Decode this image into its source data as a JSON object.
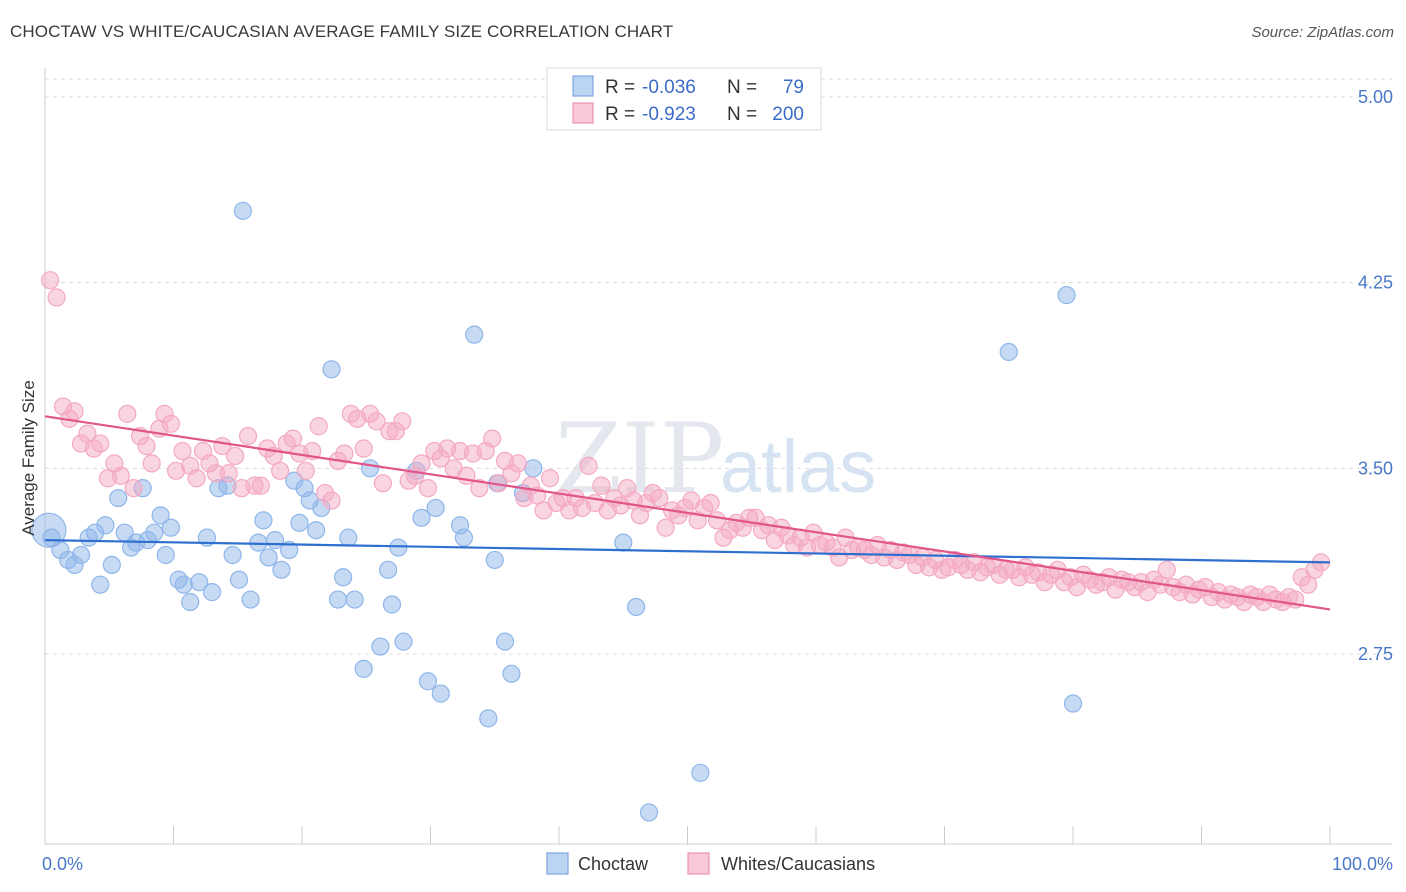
{
  "header": {
    "title": "CHOCTAW VS WHITE/CAUCASIAN AVERAGE FAMILY SIZE CORRELATION CHART",
    "source": "Source: ZipAtlas.com"
  },
  "watermark": {
    "zip": "ZIP",
    "atlas": "atlas"
  },
  "chart_data": {
    "type": "scatter",
    "ylabel": "Average Family Size",
    "xlabel": "",
    "xlim": [
      0,
      100
    ],
    "ylim": [
      2.05,
      5.1
    ],
    "x_tick_labels": {
      "left": "0.0%",
      "right": "100.0%"
    },
    "y_ticks": [
      2.75,
      3.5,
      4.25,
      5.0
    ],
    "y_tick_labels": [
      "2.75",
      "3.50",
      "4.25",
      "5.00"
    ],
    "grid": "horizontal-dashed",
    "legend_position": "top-center",
    "stats": [
      {
        "r_label": "R =",
        "r": "-0.036",
        "n_label": "N =",
        "n": "79"
      },
      {
        "r_label": "R =",
        "r": "-0.923",
        "n_label": "N =",
        "n": "200"
      }
    ],
    "series": [
      {
        "name": "Choctaw",
        "color": "#8fb6ea",
        "line_color": "#2f6fd0",
        "trend": {
          "x": [
            0,
            100
          ],
          "y": [
            3.21,
            3.12
          ]
        },
        "points": [
          [
            0.5,
            3.22
          ],
          [
            1.2,
            3.17
          ],
          [
            1.8,
            3.13
          ],
          [
            2.3,
            3.11
          ],
          [
            2.8,
            3.15
          ],
          [
            3.4,
            3.22
          ],
          [
            3.9,
            3.24
          ],
          [
            4.3,
            3.03
          ],
          [
            4.7,
            3.27
          ],
          [
            5.2,
            3.11
          ],
          [
            5.7,
            3.38
          ],
          [
            6.2,
            3.24
          ],
          [
            6.7,
            3.18
          ],
          [
            7.1,
            3.2
          ],
          [
            7.6,
            3.42
          ],
          [
            8.0,
            3.21
          ],
          [
            8.5,
            3.24
          ],
          [
            9.0,
            3.31
          ],
          [
            9.4,
            3.15
          ],
          [
            9.8,
            3.26
          ],
          [
            10.4,
            3.05
          ],
          [
            10.8,
            3.03
          ],
          [
            11.3,
            2.96
          ],
          [
            12.0,
            3.04
          ],
          [
            12.6,
            3.22
          ],
          [
            13.0,
            3.0
          ],
          [
            13.5,
            3.42
          ],
          [
            14.2,
            3.43
          ],
          [
            14.6,
            3.15
          ],
          [
            15.1,
            3.05
          ],
          [
            15.4,
            4.54
          ],
          [
            16.0,
            2.97
          ],
          [
            16.6,
            3.2
          ],
          [
            17.0,
            3.29
          ],
          [
            17.4,
            3.14
          ],
          [
            17.9,
            3.21
          ],
          [
            18.4,
            3.09
          ],
          [
            19.0,
            3.17
          ],
          [
            19.4,
            3.45
          ],
          [
            19.8,
            3.28
          ],
          [
            20.2,
            3.42
          ],
          [
            20.6,
            3.37
          ],
          [
            21.1,
            3.25
          ],
          [
            21.5,
            3.34
          ],
          [
            22.3,
            3.9
          ],
          [
            22.8,
            2.97
          ],
          [
            23.2,
            3.06
          ],
          [
            23.6,
            3.22
          ],
          [
            24.1,
            2.97
          ],
          [
            24.8,
            2.69
          ],
          [
            25.3,
            3.5
          ],
          [
            26.1,
            2.78
          ],
          [
            26.7,
            3.09
          ],
          [
            27.0,
            2.95
          ],
          [
            27.5,
            3.18
          ],
          [
            27.9,
            2.8
          ],
          [
            28.9,
            3.49
          ],
          [
            29.3,
            3.3
          ],
          [
            29.8,
            2.64
          ],
          [
            30.4,
            3.34
          ],
          [
            30.8,
            2.59
          ],
          [
            32.3,
            3.27
          ],
          [
            32.6,
            3.22
          ],
          [
            33.4,
            4.04
          ],
          [
            34.5,
            2.49
          ],
          [
            35.0,
            3.13
          ],
          [
            35.2,
            3.44
          ],
          [
            35.8,
            2.8
          ],
          [
            36.3,
            2.67
          ],
          [
            37.2,
            3.4
          ],
          [
            38.0,
            3.5
          ],
          [
            45.0,
            3.2
          ],
          [
            46.0,
            2.94
          ],
          [
            47.0,
            2.11
          ],
          [
            51.0,
            2.27
          ],
          [
            75.0,
            3.97
          ],
          [
            79.5,
            4.2
          ],
          [
            80.0,
            2.55
          ]
        ]
      },
      {
        "name": "Whites/Caucasians",
        "color": "#f4a9c3",
        "line_color": "#e0558a",
        "trend": {
          "x": [
            0,
            100
          ],
          "y": [
            3.71,
            2.93
          ]
        },
        "points": [
          [
            0.4,
            4.26
          ],
          [
            0.9,
            4.19
          ],
          [
            1.4,
            3.75
          ],
          [
            1.9,
            3.7
          ],
          [
            2.3,
            3.73
          ],
          [
            2.8,
            3.6
          ],
          [
            3.3,
            3.64
          ],
          [
            3.8,
            3.58
          ],
          [
            4.3,
            3.6
          ],
          [
            4.9,
            3.46
          ],
          [
            5.4,
            3.52
          ],
          [
            5.9,
            3.47
          ],
          [
            6.4,
            3.72
          ],
          [
            6.9,
            3.42
          ],
          [
            7.4,
            3.63
          ],
          [
            7.9,
            3.59
          ],
          [
            8.3,
            3.52
          ],
          [
            8.9,
            3.66
          ],
          [
            9.3,
            3.72
          ],
          [
            9.8,
            3.68
          ],
          [
            10.2,
            3.49
          ],
          [
            10.7,
            3.57
          ],
          [
            11.3,
            3.51
          ],
          [
            11.8,
            3.46
          ],
          [
            12.3,
            3.57
          ],
          [
            12.8,
            3.52
          ],
          [
            13.3,
            3.48
          ],
          [
            13.8,
            3.59
          ],
          [
            14.3,
            3.48
          ],
          [
            14.8,
            3.55
          ],
          [
            15.3,
            3.42
          ],
          [
            15.8,
            3.63
          ],
          [
            16.3,
            3.43
          ],
          [
            16.8,
            3.43
          ],
          [
            17.3,
            3.58
          ],
          [
            17.8,
            3.55
          ],
          [
            18.3,
            3.49
          ],
          [
            18.8,
            3.6
          ],
          [
            19.3,
            3.62
          ],
          [
            19.8,
            3.56
          ],
          [
            20.3,
            3.49
          ],
          [
            20.8,
            3.57
          ],
          [
            21.3,
            3.67
          ],
          [
            21.8,
            3.4
          ],
          [
            22.3,
            3.37
          ],
          [
            22.8,
            3.53
          ],
          [
            23.3,
            3.56
          ],
          [
            23.8,
            3.72
          ],
          [
            24.3,
            3.7
          ],
          [
            24.8,
            3.58
          ],
          [
            25.3,
            3.72
          ],
          [
            25.8,
            3.69
          ],
          [
            26.3,
            3.44
          ],
          [
            26.8,
            3.65
          ],
          [
            27.3,
            3.65
          ],
          [
            27.8,
            3.69
          ],
          [
            28.3,
            3.45
          ],
          [
            28.8,
            3.47
          ],
          [
            29.3,
            3.52
          ],
          [
            29.8,
            3.42
          ],
          [
            30.3,
            3.57
          ],
          [
            30.8,
            3.54
          ],
          [
            31.3,
            3.58
          ],
          [
            31.8,
            3.5
          ],
          [
            32.3,
            3.57
          ],
          [
            32.8,
            3.47
          ],
          [
            33.3,
            3.56
          ],
          [
            33.8,
            3.42
          ],
          [
            34.3,
            3.57
          ],
          [
            34.8,
            3.62
          ],
          [
            35.3,
            3.44
          ],
          [
            35.8,
            3.53
          ],
          [
            36.3,
            3.48
          ],
          [
            36.8,
            3.52
          ],
          [
            37.3,
            3.38
          ],
          [
            37.8,
            3.43
          ],
          [
            38.3,
            3.39
          ],
          [
            38.8,
            3.33
          ],
          [
            39.3,
            3.46
          ],
          [
            39.8,
            3.36
          ],
          [
            40.3,
            3.38
          ],
          [
            40.8,
            3.33
          ],
          [
            41.3,
            3.38
          ],
          [
            41.8,
            3.34
          ],
          [
            42.3,
            3.51
          ],
          [
            42.8,
            3.36
          ],
          [
            43.3,
            3.43
          ],
          [
            43.8,
            3.33
          ],
          [
            44.3,
            3.38
          ],
          [
            44.8,
            3.35
          ],
          [
            45.3,
            3.42
          ],
          [
            45.8,
            3.37
          ],
          [
            46.3,
            3.31
          ],
          [
            46.8,
            3.36
          ],
          [
            47.3,
            3.4
          ],
          [
            47.8,
            3.38
          ],
          [
            48.3,
            3.26
          ],
          [
            48.8,
            3.33
          ],
          [
            49.3,
            3.31
          ],
          [
            49.8,
            3.34
          ],
          [
            50.3,
            3.37
          ],
          [
            50.8,
            3.29
          ],
          [
            51.3,
            3.34
          ],
          [
            51.8,
            3.36
          ],
          [
            52.3,
            3.29
          ],
          [
            52.8,
            3.22
          ],
          [
            53.3,
            3.25
          ],
          [
            53.8,
            3.28
          ],
          [
            54.3,
            3.26
          ],
          [
            54.8,
            3.3
          ],
          [
            55.3,
            3.3
          ],
          [
            55.8,
            3.25
          ],
          [
            56.3,
            3.27
          ],
          [
            56.8,
            3.21
          ],
          [
            57.3,
            3.26
          ],
          [
            57.8,
            3.23
          ],
          [
            58.3,
            3.19
          ],
          [
            58.8,
            3.22
          ],
          [
            59.3,
            3.18
          ],
          [
            59.8,
            3.24
          ],
          [
            60.3,
            3.19
          ],
          [
            60.8,
            3.2
          ],
          [
            61.3,
            3.18
          ],
          [
            61.8,
            3.14
          ],
          [
            62.3,
            3.22
          ],
          [
            62.8,
            3.17
          ],
          [
            63.3,
            3.18
          ],
          [
            63.8,
            3.17
          ],
          [
            64.3,
            3.15
          ],
          [
            64.8,
            3.19
          ],
          [
            65.3,
            3.14
          ],
          [
            65.8,
            3.17
          ],
          [
            66.3,
            3.13
          ],
          [
            66.8,
            3.16
          ],
          [
            67.3,
            3.15
          ],
          [
            67.8,
            3.11
          ],
          [
            68.3,
            3.14
          ],
          [
            68.8,
            3.1
          ],
          [
            69.3,
            3.13
          ],
          [
            69.8,
            3.09
          ],
          [
            70.3,
            3.1
          ],
          [
            70.8,
            3.13
          ],
          [
            71.3,
            3.11
          ],
          [
            71.8,
            3.09
          ],
          [
            72.3,
            3.12
          ],
          [
            72.8,
            3.08
          ],
          [
            73.3,
            3.1
          ],
          [
            73.8,
            3.11
          ],
          [
            74.3,
            3.07
          ],
          [
            74.8,
            3.09
          ],
          [
            75.3,
            3.09
          ],
          [
            75.8,
            3.06
          ],
          [
            76.3,
            3.1
          ],
          [
            76.8,
            3.07
          ],
          [
            77.3,
            3.08
          ],
          [
            77.8,
            3.04
          ],
          [
            78.3,
            3.07
          ],
          [
            78.8,
            3.09
          ],
          [
            79.3,
            3.04
          ],
          [
            79.8,
            3.06
          ],
          [
            80.3,
            3.02
          ],
          [
            80.8,
            3.07
          ],
          [
            81.3,
            3.05
          ],
          [
            81.8,
            3.03
          ],
          [
            82.3,
            3.04
          ],
          [
            82.8,
            3.06
          ],
          [
            83.3,
            3.01
          ],
          [
            83.8,
            3.05
          ],
          [
            84.3,
            3.04
          ],
          [
            84.8,
            3.02
          ],
          [
            85.3,
            3.04
          ],
          [
            85.8,
            3.0
          ],
          [
            86.3,
            3.05
          ],
          [
            86.8,
            3.03
          ],
          [
            87.3,
            3.09
          ],
          [
            87.8,
            3.02
          ],
          [
            88.3,
            3.0
          ],
          [
            88.8,
            3.03
          ],
          [
            89.3,
            2.99
          ],
          [
            89.8,
            3.01
          ],
          [
            90.3,
            3.02
          ],
          [
            90.8,
            2.98
          ],
          [
            91.3,
            3.0
          ],
          [
            91.8,
            2.97
          ],
          [
            92.3,
            2.99
          ],
          [
            92.8,
            2.98
          ],
          [
            93.3,
            2.96
          ],
          [
            93.8,
            2.99
          ],
          [
            94.3,
            2.98
          ],
          [
            94.8,
            2.96
          ],
          [
            95.3,
            2.99
          ],
          [
            95.8,
            2.97
          ],
          [
            96.3,
            2.96
          ],
          [
            96.8,
            2.98
          ],
          [
            97.3,
            2.97
          ],
          [
            97.8,
            3.06
          ],
          [
            98.3,
            3.03
          ],
          [
            98.8,
            3.09
          ],
          [
            99.3,
            3.12
          ]
        ]
      }
    ]
  }
}
